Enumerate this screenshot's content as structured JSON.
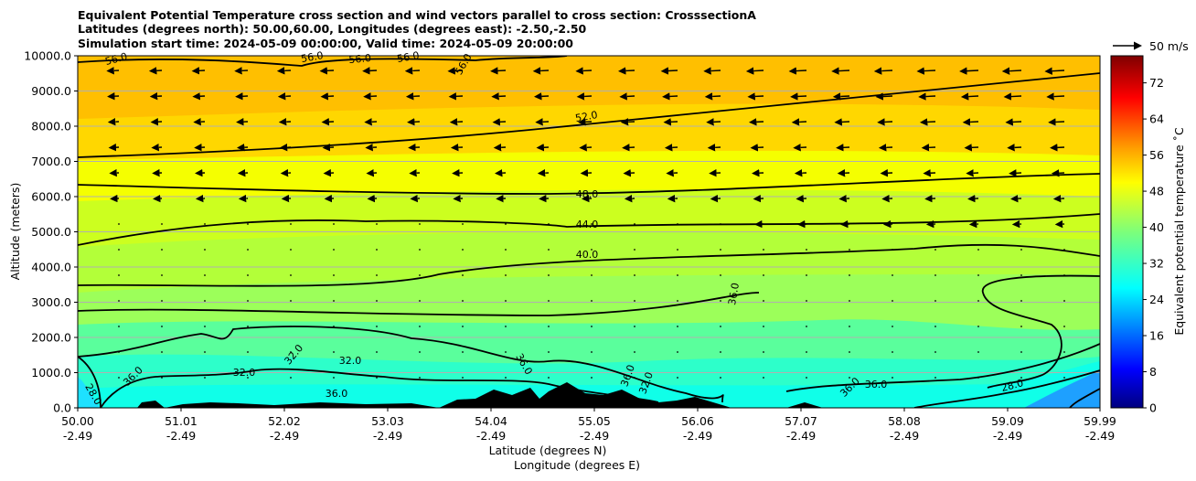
{
  "chart_data": {
    "type": "heatmap",
    "title": [
      "Equivalent Potential Temperature cross section and wind vectors parallel to cross section: CrosssectionA",
      "Latitudes (degrees north): 50.00,60.00, Longitudes (degrees east): -2.50,-2.50",
      "Simulation start time: 2024-05-09 00:00:00, Valid time: 2024-05-09 20:00:00"
    ],
    "xlabel": [
      "Latitude (degrees N)",
      "Longitude (degrees E)"
    ],
    "ylabel": "Altitude (meters)",
    "x_ticks": [
      {
        "lat": "50.00",
        "lon": "-2.49"
      },
      {
        "lat": "51.01",
        "lon": "-2.49"
      },
      {
        "lat": "52.02",
        "lon": "-2.49"
      },
      {
        "lat": "53.03",
        "lon": "-2.49"
      },
      {
        "lat": "54.04",
        "lon": "-2.49"
      },
      {
        "lat": "55.05",
        "lon": "-2.49"
      },
      {
        "lat": "56.06",
        "lon": "-2.49"
      },
      {
        "lat": "57.07",
        "lon": "-2.49"
      },
      {
        "lat": "58.08",
        "lon": "-2.49"
      },
      {
        "lat": "59.09",
        "lon": "-2.49"
      },
      {
        "lat": "59.99",
        "lon": "-2.49"
      }
    ],
    "xlim": [
      50.0,
      59.99
    ],
    "y_ticks": [
      "0.0",
      "1000.0",
      "2000.0",
      "3000.0",
      "4000.0",
      "5000.0",
      "6000.0",
      "7000.0",
      "8000.0",
      "9000.0",
      "10000.0"
    ],
    "ylim": [
      0,
      10000
    ],
    "grid": "horizontal",
    "colorbar": {
      "label": "Equivalent potential temperature ˚C",
      "ticks": [
        "0",
        "8",
        "16",
        "24",
        "32",
        "40",
        "48",
        "56",
        "64",
        "72"
      ],
      "range": [
        0,
        78
      ],
      "colormap": "jet"
    },
    "contour_labels": [
      "56.0",
      "56.0",
      "56.0",
      "56.0",
      "56.0",
      "52.0",
      "48.0",
      "44.0",
      "40.0",
      "36.0",
      "36.0",
      "36.0",
      "36.0",
      "36.0",
      "36.0",
      "36.0",
      "32.0",
      "32.0",
      "32.0",
      "32.0",
      "28.0",
      "28.0"
    ],
    "quiver_key": "50 m/s"
  }
}
